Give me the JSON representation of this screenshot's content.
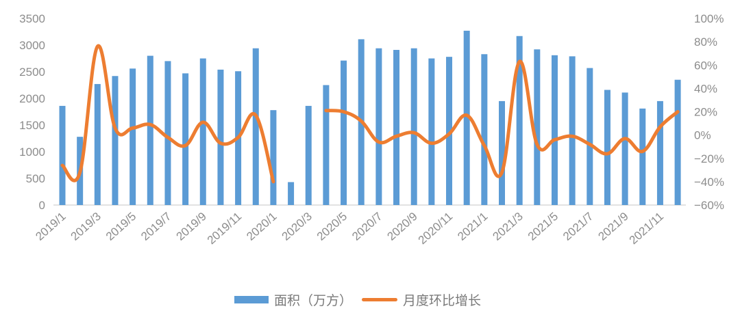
{
  "chart_data": {
    "type": "bar+line",
    "title": "",
    "categories": [
      "2019/1",
      "2019/2",
      "2019/3",
      "2019/4",
      "2019/5",
      "2019/6",
      "2019/7",
      "2019/8",
      "2019/9",
      "2019/10",
      "2019/11",
      "2019/12",
      "2020/1",
      "2020/2",
      "2020/3",
      "2020/4",
      "2020/5",
      "2020/6",
      "2020/7",
      "2020/8",
      "2020/9",
      "2020/10",
      "2020/11",
      "2020/12",
      "2021/1",
      "2021/2",
      "2021/3",
      "2021/4",
      "2021/5",
      "2021/6",
      "2021/7",
      "2021/8",
      "2021/9",
      "2021/10",
      "2021/11",
      "2021/12"
    ],
    "x_tick_labels": [
      "2019/1",
      "2019/3",
      "2019/5",
      "2019/7",
      "2019/9",
      "2019/11",
      "2020/1",
      "2020/3",
      "2020/5",
      "2020/7",
      "2020/9",
      "2020/11",
      "2021/1",
      "2021/3",
      "2021/5",
      "2021/7",
      "2021/9",
      "2021/11"
    ],
    "series": [
      {
        "name": "面积（万方）",
        "type": "bar",
        "axis": "left",
        "color": "#5B9BD5",
        "values": [
          1860,
          1280,
          2270,
          2420,
          2560,
          2800,
          2700,
          2470,
          2750,
          2540,
          2510,
          2940,
          1780,
          430,
          1860,
          2250,
          2710,
          3110,
          2940,
          2910,
          2940,
          2750,
          2780,
          3270,
          2830,
          1950,
          3170,
          2920,
          2810,
          2790,
          2570,
          2160,
          2110,
          1810,
          1950,
          2350
        ]
      },
      {
        "name": "月度环比增长",
        "type": "line",
        "axis": "right",
        "unit": "%",
        "color": "#ED7D31",
        "values": [
          -26,
          -32,
          76,
          6,
          6,
          9,
          -2,
          -9,
          11,
          -7,
          -2,
          17,
          -40,
          null,
          null,
          21,
          20,
          12,
          -6,
          -1,
          2,
          -7,
          1,
          17,
          -9,
          -32,
          63,
          -8,
          -4,
          -1,
          -8,
          -16,
          -3,
          -14,
          7,
          20
        ]
      }
    ],
    "y_left": {
      "ylim": [
        0,
        3500
      ],
      "ticks": [
        "0",
        "500",
        "1000",
        "1500",
        "2000",
        "2500",
        "3000",
        "3500"
      ],
      "label": ""
    },
    "y_right": {
      "ylim": [
        -60,
        100
      ],
      "ticks": [
        "-60%",
        "-40%",
        "-20%",
        "0%",
        "20%",
        "40%",
        "60%",
        "80%",
        "100%"
      ],
      "label": ""
    },
    "xlabel": "",
    "grid": false,
    "legend_position": "bottom"
  },
  "legend": {
    "bar_label": "面积（万方）",
    "line_label": "月度环比增长"
  }
}
